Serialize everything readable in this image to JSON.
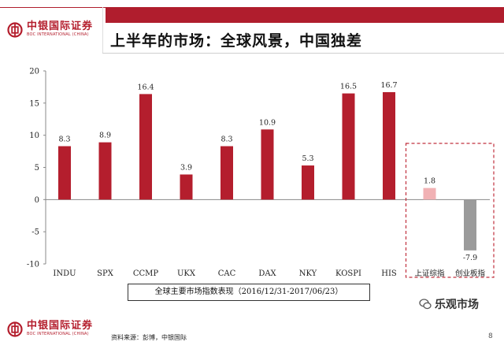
{
  "header": {
    "title": "上半年的市场：全球风景，中国独差",
    "brand_cn": "中银国际证券",
    "brand_en": "BOC INTERNATIONAL (CHINA)"
  },
  "footer": {
    "source": "资料来源：彭博，中银国际",
    "page_number": "8",
    "watermark": "乐观市场"
  },
  "colors": {
    "brand_red": "#b01d2d",
    "bar_red": "#b41e2d",
    "bar_pink": "#f1b1b4",
    "bar_gray": "#9b9b9b"
  },
  "chart_data": {
    "type": "bar",
    "title": "全球主要市场指数表现（2016/12/31-2017/06/23）",
    "categories": [
      "INDU",
      "SPX",
      "CCMP",
      "UKX",
      "CAC",
      "DAX",
      "NKY",
      "KOSPI",
      "HIS",
      "上证综指",
      "创业板指"
    ],
    "values": [
      8.3,
      8.9,
      16.4,
      3.9,
      8.3,
      10.9,
      5.3,
      16.5,
      16.7,
      1.8,
      -7.9
    ],
    "value_labels": [
      "8.3",
      "8.9",
      "16.4",
      "3.9",
      "8.3",
      "10.9",
      "5.3",
      "16.5",
      "16.7",
      "1.8",
      "-7.9"
    ],
    "y_ticks": [
      "20",
      "15",
      "10",
      "5",
      "0",
      "-5",
      "-10"
    ],
    "ylim": [
      -10,
      20
    ],
    "highlighted_categories": [
      "上证综指",
      "创业板指"
    ],
    "grid": false,
    "xlabel": "",
    "ylabel": ""
  }
}
